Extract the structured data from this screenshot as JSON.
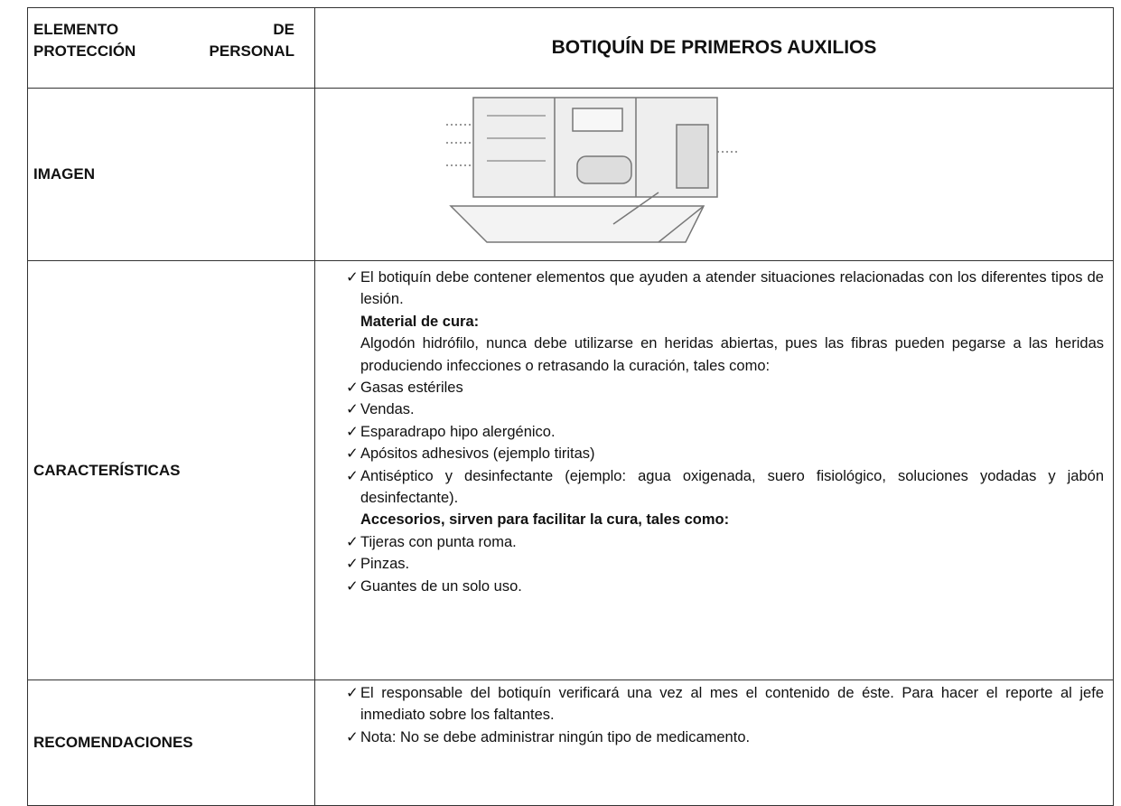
{
  "table": {
    "header": [
      "ELEMENTO DE\nPROTECCIÓN PERSONAL",
      "BOTIQUÍN DE PRIMEROS AUXILIOS"
    ],
    "rows": [
      {
        "label": "IMAGEN"
      },
      {
        "label": "CARACTERÍSTICAS",
        "items": [
          {
            "text": "El botiquín debe contener elementos que ayuden a atender situaciones relacionadas con los diferentes tipos de lesión."
          },
          {
            "heading": "Material de cura:"
          },
          {
            "note": "Algodón hidrófilo, nunca debe utilizarse en heridas abiertas, pues las fibras pueden pegarse a las heridas produciendo infecciones o retrasando la curación, tales como:"
          },
          {
            "text": "Gasas estériles"
          },
          {
            "text": "Vendas."
          },
          {
            "text": "Esparadrapo hipo alergénico."
          },
          {
            "text": "Apósitos adhesivos (ejemplo tiritas)"
          },
          {
            "text": "Antiséptico y desinfectante (ejemplo: agua oxigenada, suero fisiológico, soluciones yodadas y jabón desinfectante)."
          },
          {
            "heading": "Accesorios, sirven para facilitar la cura, tales como:"
          },
          {
            "text": "Tijeras con punta roma."
          },
          {
            "text": "Pinzas."
          },
          {
            "text": "Guantes de un solo uso."
          }
        ]
      },
      {
        "label": "RECOMENDACIONES",
        "items": [
          {
            "text": "El responsable del botiquín verificará una vez al mes el contenido de éste. Para hacer el reporte al jefe inmediato sobre los faltantes."
          },
          {
            "text": "Nota: No se debe administrar ningún tipo de medicamento."
          }
        ]
      }
    ]
  }
}
